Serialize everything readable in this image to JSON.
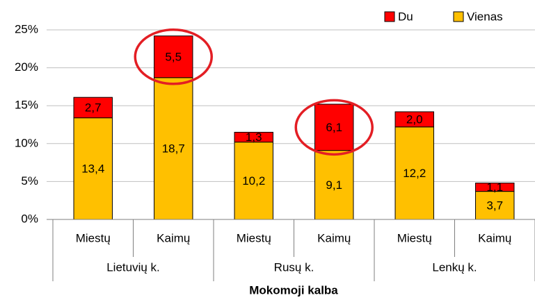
{
  "chart_data": {
    "type": "stacked_bar",
    "categories": [
      "Miestų",
      "Kaimų",
      "Miestų",
      "Kaimų",
      "Miestų",
      "Kaimų"
    ],
    "groups": [
      "Lietuvių k.",
      "Rusų k.",
      "Lenkų k."
    ],
    "x_label": "Mokomoji kalba",
    "series": [
      {
        "name": "Vienas",
        "color": "#ffc000",
        "values": [
          13.4,
          18.7,
          10.2,
          9.1,
          12.2,
          3.7
        ],
        "value_labels": [
          "13,4",
          "18,7",
          "10,2",
          "9,1",
          "12,2",
          "3,7"
        ]
      },
      {
        "name": "Du",
        "color": "#ff0000",
        "values": [
          2.7,
          5.5,
          1.3,
          6.1,
          2.0,
          1.1
        ],
        "value_labels": [
          "2,7",
          "5,5",
          "1,3",
          "6,1",
          "2,0",
          "1,1"
        ]
      }
    ],
    "ylim": [
      0,
      25
    ],
    "yticks": [
      {
        "value": 0,
        "label": "0%"
      },
      {
        "value": 5,
        "label": "5%"
      },
      {
        "value": 10,
        "label": "10%"
      },
      {
        "value": 15,
        "label": "15%"
      },
      {
        "value": 20,
        "label": "20%"
      },
      {
        "value": 25,
        "label": "25%"
      }
    ],
    "grid": true,
    "legend": "top-right"
  }
}
